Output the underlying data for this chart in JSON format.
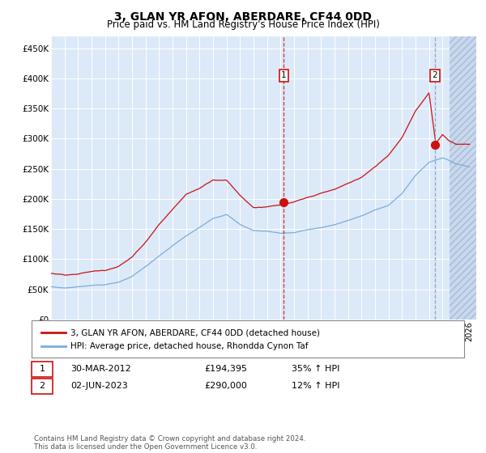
{
  "title": "3, GLAN YR AFON, ABERDARE, CF44 0DD",
  "subtitle": "Price paid vs. HM Land Registry's House Price Index (HPI)",
  "ytick_labels": [
    "£0",
    "£50K",
    "£100K",
    "£150K",
    "£200K",
    "£250K",
    "£300K",
    "£350K",
    "£400K",
    "£450K"
  ],
  "yticks": [
    0,
    50000,
    100000,
    150000,
    200000,
    250000,
    300000,
    350000,
    400000,
    450000
  ],
  "ylim": [
    0,
    470000
  ],
  "xlim": [
    1995.0,
    2026.5
  ],
  "hpi_color": "#7aaddc",
  "price_color": "#cc1111",
  "bg_color": "#dce9f8",
  "future_bg_color": "#c8d8ee",
  "future_start": 2024.5,
  "ann1_x": 2012.25,
  "ann1_y": 194395,
  "ann2_x": 2023.42,
  "ann2_y": 290000,
  "legend_label1": "3, GLAN YR AFON, ABERDARE, CF44 0DD (detached house)",
  "legend_label2": "HPI: Average price, detached house, Rhondda Cynon Taf",
  "note1_label": "1",
  "note1_date": "30-MAR-2012",
  "note1_price": "£194,395",
  "note1_hpi": "35% ↑ HPI",
  "note2_label": "2",
  "note2_date": "02-JUN-2023",
  "note2_price": "£290,000",
  "note2_hpi": "12% ↑ HPI",
  "footer": "Contains HM Land Registry data © Crown copyright and database right 2024.\nThis data is licensed under the Open Government Licence v3.0."
}
